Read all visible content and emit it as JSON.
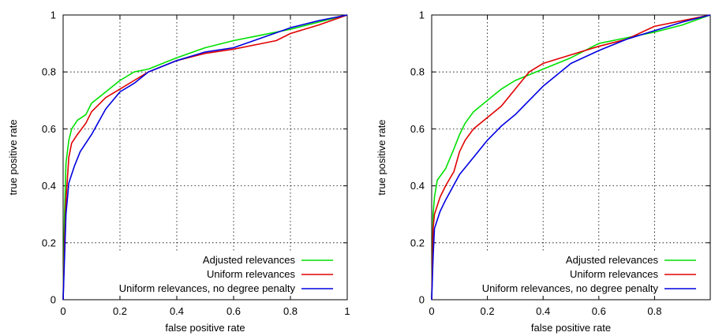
{
  "colors": {
    "adjusted": "#00e000",
    "uniform": "#e00000",
    "uniform_no_penalty": "#0000e0",
    "grid": "#000000"
  },
  "chart_data": [
    {
      "type": "line",
      "xlabel": "false positive rate",
      "ylabel": "true positive rate",
      "xlim": [
        0,
        1
      ],
      "ylim": [
        0,
        1
      ],
      "xticks": [
        "0",
        "0.2",
        "0.4",
        "0.6",
        "0.8",
        "1"
      ],
      "yticks": [
        "0",
        "0.2",
        "0.4",
        "0.6",
        "0.8",
        "1"
      ],
      "grid": true,
      "legend_position": "bottom-right",
      "series": [
        {
          "name": "Adjusted relevances",
          "color_key": "adjusted",
          "points": [
            [
              0,
              0
            ],
            [
              0.005,
              0.3
            ],
            [
              0.01,
              0.48
            ],
            [
              0.02,
              0.56
            ],
            [
              0.03,
              0.6
            ],
            [
              0.05,
              0.63
            ],
            [
              0.08,
              0.65
            ],
            [
              0.1,
              0.69
            ],
            [
              0.15,
              0.73
            ],
            [
              0.2,
              0.77
            ],
            [
              0.25,
              0.8
            ],
            [
              0.3,
              0.81
            ],
            [
              0.4,
              0.85
            ],
            [
              0.5,
              0.885
            ],
            [
              0.6,
              0.91
            ],
            [
              0.7,
              0.93
            ],
            [
              0.8,
              0.95
            ],
            [
              0.9,
              0.975
            ],
            [
              1,
              1
            ]
          ]
        },
        {
          "name": "Uniform relevances",
          "color_key": "uniform",
          "points": [
            [
              0,
              0
            ],
            [
              0.005,
              0.2
            ],
            [
              0.01,
              0.35
            ],
            [
              0.02,
              0.5
            ],
            [
              0.03,
              0.55
            ],
            [
              0.05,
              0.58
            ],
            [
              0.08,
              0.62
            ],
            [
              0.1,
              0.66
            ],
            [
              0.15,
              0.71
            ],
            [
              0.2,
              0.74
            ],
            [
              0.25,
              0.77
            ],
            [
              0.3,
              0.8
            ],
            [
              0.4,
              0.84
            ],
            [
              0.5,
              0.865
            ],
            [
              0.6,
              0.88
            ],
            [
              0.7,
              0.9
            ],
            [
              0.75,
              0.91
            ],
            [
              0.8,
              0.935
            ],
            [
              0.9,
              0.965
            ],
            [
              1,
              1
            ]
          ]
        },
        {
          "name": "Uniform relevances, no degree penalty",
          "color_key": "uniform_no_penalty",
          "points": [
            [
              0,
              0
            ],
            [
              0.005,
              0.15
            ],
            [
              0.01,
              0.3
            ],
            [
              0.02,
              0.41
            ],
            [
              0.04,
              0.47
            ],
            [
              0.06,
              0.52
            ],
            [
              0.08,
              0.55
            ],
            [
              0.1,
              0.58
            ],
            [
              0.15,
              0.67
            ],
            [
              0.2,
              0.73
            ],
            [
              0.25,
              0.76
            ],
            [
              0.3,
              0.8
            ],
            [
              0.4,
              0.84
            ],
            [
              0.5,
              0.87
            ],
            [
              0.6,
              0.885
            ],
            [
              0.7,
              0.92
            ],
            [
              0.8,
              0.955
            ],
            [
              0.9,
              0.98
            ],
            [
              1,
              1
            ]
          ]
        }
      ]
    },
    {
      "type": "line",
      "xlabel": "false positive rate",
      "ylabel": "true positive rate",
      "xlim": [
        0,
        1
      ],
      "ylim": [
        0,
        1
      ],
      "xticks": [
        "0",
        "0.2",
        "0.4",
        "0.6",
        "0.8"
      ],
      "yticks": [
        "0",
        "0.2",
        "0.4",
        "0.6",
        "0.8",
        "1"
      ],
      "grid": true,
      "legend_position": "bottom-right",
      "series": [
        {
          "name": "Adjusted relevances",
          "color_key": "adjusted",
          "points": [
            [
              0,
              0
            ],
            [
              0.005,
              0.3
            ],
            [
              0.01,
              0.36
            ],
            [
              0.02,
              0.42
            ],
            [
              0.05,
              0.46
            ],
            [
              0.08,
              0.53
            ],
            [
              0.1,
              0.58
            ],
            [
              0.12,
              0.62
            ],
            [
              0.15,
              0.66
            ],
            [
              0.2,
              0.7
            ],
            [
              0.25,
              0.74
            ],
            [
              0.3,
              0.77
            ],
            [
              0.4,
              0.81
            ],
            [
              0.5,
              0.85
            ],
            [
              0.6,
              0.9
            ],
            [
              0.7,
              0.92
            ],
            [
              0.8,
              0.94
            ],
            [
              0.9,
              0.965
            ],
            [
              1,
              1
            ]
          ]
        },
        {
          "name": "Uniform relevances",
          "color_key": "uniform",
          "points": [
            [
              0,
              0
            ],
            [
              0.005,
              0.25
            ],
            [
              0.01,
              0.3
            ],
            [
              0.03,
              0.36
            ],
            [
              0.05,
              0.4
            ],
            [
              0.08,
              0.45
            ],
            [
              0.1,
              0.52
            ],
            [
              0.12,
              0.56
            ],
            [
              0.15,
              0.6
            ],
            [
              0.2,
              0.64
            ],
            [
              0.25,
              0.68
            ],
            [
              0.3,
              0.74
            ],
            [
              0.35,
              0.8
            ],
            [
              0.4,
              0.83
            ],
            [
              0.5,
              0.86
            ],
            [
              0.6,
              0.89
            ],
            [
              0.7,
              0.915
            ],
            [
              0.8,
              0.96
            ],
            [
              0.9,
              0.98
            ],
            [
              1,
              1
            ]
          ]
        },
        {
          "name": "Uniform relevances, no degree penalty",
          "color_key": "uniform_no_penalty",
          "points": [
            [
              0,
              0
            ],
            [
              0.005,
              0.15
            ],
            [
              0.01,
              0.25
            ],
            [
              0.03,
              0.31
            ],
            [
              0.05,
              0.35
            ],
            [
              0.1,
              0.44
            ],
            [
              0.15,
              0.5
            ],
            [
              0.2,
              0.56
            ],
            [
              0.25,
              0.61
            ],
            [
              0.3,
              0.65
            ],
            [
              0.35,
              0.7
            ],
            [
              0.4,
              0.75
            ],
            [
              0.5,
              0.83
            ],
            [
              0.6,
              0.875
            ],
            [
              0.7,
              0.915
            ],
            [
              0.8,
              0.945
            ],
            [
              0.9,
              0.975
            ],
            [
              1,
              1
            ]
          ]
        }
      ]
    }
  ]
}
